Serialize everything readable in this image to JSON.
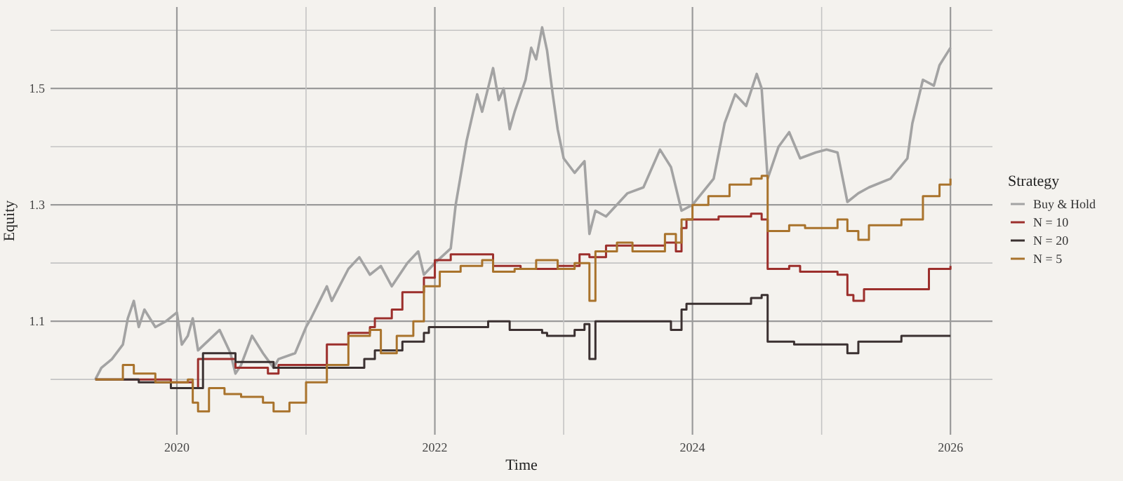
{
  "chart_data": {
    "type": "line",
    "xlabel": "Time",
    "ylabel": "Equity",
    "legend_title": "Strategy",
    "legend": "right",
    "grid": true,
    "xlim": [
      "2019-01-08",
      "2026-04-30"
    ],
    "ylim": [
      0.905,
      1.64
    ],
    "xticks": [
      {
        "value": "2020",
        "label": "2020"
      },
      {
        "value": "2021",
        "label": null
      },
      {
        "value": "2022",
        "label": "2022"
      },
      {
        "value": "2023",
        "label": null
      },
      {
        "value": "2024",
        "label": "2024"
      },
      {
        "value": "2025",
        "label": null
      },
      {
        "value": "2026",
        "label": "2026"
      }
    ],
    "yticks": [
      {
        "value": 1.0,
        "label": null
      },
      1.1,
      {
        "value": 1.2,
        "label": null
      },
      1.3,
      {
        "value": 1.4,
        "label": null
      },
      1.5,
      {
        "value": 1.6,
        "label": null
      }
    ],
    "series": [
      {
        "name": "Buy & Hold",
        "type": "line",
        "color": "#a3a3a3",
        "x": [
          "2019-05-15",
          "2019-06-01",
          "2019-07-01",
          "2019-08-01",
          "2019-08-15",
          "2019-09-01",
          "2019-09-15",
          "2019-10-01",
          "2019-11-01",
          "2019-12-01",
          "2020-01-01",
          "2020-01-15",
          "2020-02-01",
          "2020-02-15",
          "2020-03-01",
          "2020-05-01",
          "2020-06-01",
          "2020-06-15",
          "2020-07-01",
          "2020-08-01",
          "2020-09-01",
          "2020-10-01",
          "2020-10-15",
          "2020-12-01",
          "2021-01-01",
          "2021-01-15",
          "2021-03-01",
          "2021-03-15",
          "2021-05-01",
          "2021-06-01",
          "2021-07-01",
          "2021-08-01",
          "2021-09-01",
          "2021-10-15",
          "2021-11-15",
          "2021-12-01",
          "2022-01-01",
          "2022-02-15",
          "2022-03-01",
          "2022-04-01",
          "2022-05-01",
          "2022-05-15",
          "2022-06-15",
          "2022-07-01",
          "2022-07-15",
          "2022-08-01",
          "2022-08-15",
          "2022-09-15",
          "2022-10-01",
          "2022-10-15",
          "2022-11-01",
          "2022-11-15",
          "2022-12-01",
          "2022-12-15",
          "2023-01-01",
          "2023-02-01",
          "2023-03-01",
          "2023-03-15",
          "2023-04-01",
          "2023-05-01",
          "2023-07-01",
          "2023-08-15",
          "2023-10-01",
          "2023-11-01",
          "2023-12-01",
          "2024-01-01",
          "2024-03-01",
          "2024-04-01",
          "2024-05-01",
          "2024-06-01",
          "2024-07-01",
          "2024-07-15",
          "2024-08-01",
          "2024-09-01",
          "2024-10-01",
          "2024-11-01",
          "2024-12-15",
          "2025-01-15",
          "2025-02-15",
          "2025-03-15",
          "2025-04-15",
          "2025-05-15",
          "2025-07-15",
          "2025-09-01",
          "2025-09-15",
          "2025-10-15",
          "2025-11-15",
          "2025-12-01",
          "2026-01-01"
        ],
        "values": [
          1.0,
          1.02,
          1.035,
          1.06,
          1.105,
          1.135,
          1.09,
          1.12,
          1.09,
          1.1,
          1.115,
          1.06,
          1.075,
          1.105,
          1.05,
          1.085,
          1.045,
          1.01,
          1.025,
          1.075,
          1.045,
          1.02,
          1.035,
          1.045,
          1.09,
          1.105,
          1.16,
          1.135,
          1.19,
          1.21,
          1.18,
          1.195,
          1.16,
          1.2,
          1.22,
          1.18,
          1.2,
          1.225,
          1.3,
          1.41,
          1.49,
          1.46,
          1.535,
          1.48,
          1.5,
          1.43,
          1.46,
          1.515,
          1.57,
          1.55,
          1.605,
          1.565,
          1.49,
          1.43,
          1.38,
          1.355,
          1.375,
          1.25,
          1.29,
          1.28,
          1.32,
          1.33,
          1.395,
          1.365,
          1.29,
          1.3,
          1.345,
          1.44,
          1.49,
          1.47,
          1.525,
          1.5,
          1.345,
          1.4,
          1.425,
          1.38,
          1.39,
          1.395,
          1.39,
          1.305,
          1.32,
          1.33,
          1.345,
          1.38,
          1.44,
          1.515,
          1.505,
          1.54,
          1.57
        ]
      },
      {
        "name": "N = 10",
        "type": "step",
        "color": "#9c2f2c",
        "x": [
          "2019-05-15",
          "2019-12-15",
          "2020-02-15",
          "2020-03-01",
          "2020-06-15",
          "2020-09-15",
          "2020-10-15",
          "2021-03-01",
          "2021-05-01",
          "2021-07-01",
          "2021-07-15",
          "2021-09-01",
          "2021-10-01",
          "2021-12-01",
          "2022-01-01",
          "2022-02-15",
          "2022-06-15",
          "2022-09-01",
          "2022-12-15",
          "2023-02-15",
          "2023-03-15",
          "2023-05-01",
          "2023-10-15",
          "2023-11-15",
          "2023-12-01",
          "2023-12-15",
          "2024-03-15",
          "2024-06-15",
          "2024-07-15",
          "2024-08-01",
          "2024-10-01",
          "2024-11-01",
          "2025-02-15",
          "2025-03-15",
          "2025-04-01",
          "2025-05-01",
          "2025-11-01",
          "2026-01-01"
        ],
        "values": [
          1.0,
          0.995,
          0.985,
          1.035,
          1.02,
          1.01,
          1.025,
          1.06,
          1.08,
          1.09,
          1.105,
          1.12,
          1.15,
          1.175,
          1.205,
          1.215,
          1.195,
          1.19,
          1.195,
          1.215,
          1.21,
          1.23,
          1.235,
          1.22,
          1.26,
          1.275,
          1.28,
          1.285,
          1.275,
          1.19,
          1.195,
          1.185,
          1.18,
          1.145,
          1.135,
          1.155,
          1.19,
          1.195
        ]
      },
      {
        "name": "N = 20",
        "type": "step",
        "color": "#3b3131",
        "x": [
          "2019-05-15",
          "2019-09-15",
          "2019-12-15",
          "2020-03-15",
          "2020-06-15",
          "2020-10-01",
          "2021-06-15",
          "2021-07-15",
          "2021-10-01",
          "2021-12-01",
          "2021-12-15",
          "2022-06-01",
          "2022-08-01",
          "2022-11-01",
          "2022-11-15",
          "2023-02-01",
          "2023-03-01",
          "2023-03-15",
          "2023-04-01",
          "2023-11-01",
          "2023-12-01",
          "2023-12-15",
          "2024-06-15",
          "2024-07-15",
          "2024-08-01",
          "2024-10-15",
          "2025-03-15",
          "2025-04-15",
          "2025-08-15",
          "2026-01-01"
        ],
        "values": [
          1.0,
          0.995,
          0.985,
          1.045,
          1.03,
          1.02,
          1.035,
          1.05,
          1.065,
          1.08,
          1.09,
          1.1,
          1.085,
          1.08,
          1.075,
          1.085,
          1.095,
          1.035,
          1.1,
          1.085,
          1.12,
          1.13,
          1.14,
          1.145,
          1.065,
          1.06,
          1.045,
          1.065,
          1.075,
          1.075
        ]
      },
      {
        "name": "N = 5",
        "type": "step",
        "color": "#a9732c",
        "x": [
          "2019-05-15",
          "2019-08-01",
          "2019-09-01",
          "2019-11-01",
          "2020-02-01",
          "2020-02-15",
          "2020-03-01",
          "2020-04-01",
          "2020-05-15",
          "2020-07-01",
          "2020-09-01",
          "2020-10-01",
          "2020-11-15",
          "2021-01-01",
          "2021-03-01",
          "2021-05-01",
          "2021-07-01",
          "2021-08-01",
          "2021-09-15",
          "2021-11-01",
          "2021-12-01",
          "2022-01-15",
          "2022-03-15",
          "2022-05-15",
          "2022-06-15",
          "2022-08-15",
          "2022-10-15",
          "2022-12-15",
          "2023-02-01",
          "2023-03-15",
          "2023-04-01",
          "2023-06-01",
          "2023-07-15",
          "2023-10-15",
          "2023-11-15",
          "2023-12-01",
          "2024-01-01",
          "2024-02-15",
          "2024-04-15",
          "2024-06-15",
          "2024-07-15",
          "2024-08-01",
          "2024-10-01",
          "2024-11-15",
          "2025-02-15",
          "2025-03-15",
          "2025-04-15",
          "2025-05-15",
          "2025-08-15",
          "2025-10-15",
          "2025-12-01",
          "2026-01-01"
        ],
        "values": [
          1.0,
          1.025,
          1.01,
          0.995,
          1.0,
          0.96,
          0.945,
          0.985,
          0.975,
          0.97,
          0.96,
          0.945,
          0.96,
          0.995,
          1.025,
          1.075,
          1.085,
          1.045,
          1.075,
          1.1,
          1.16,
          1.185,
          1.195,
          1.205,
          1.185,
          1.19,
          1.205,
          1.19,
          1.2,
          1.135,
          1.22,
          1.235,
          1.22,
          1.25,
          1.235,
          1.275,
          1.3,
          1.315,
          1.335,
          1.345,
          1.35,
          1.255,
          1.265,
          1.26,
          1.275,
          1.255,
          1.24,
          1.265,
          1.275,
          1.315,
          1.335,
          1.345
        ]
      }
    ]
  }
}
